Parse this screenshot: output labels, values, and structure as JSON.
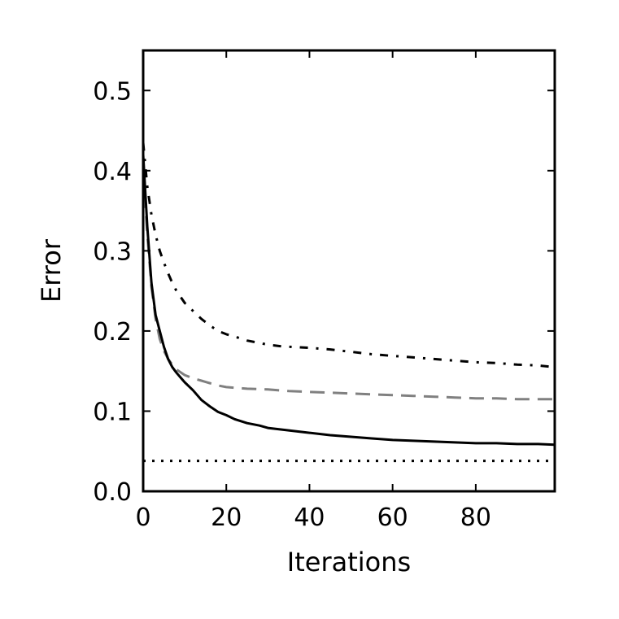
{
  "chart_data": {
    "type": "line",
    "title": "",
    "xlabel": "Iterations",
    "ylabel": "Error",
    "xlim": [
      0,
      99
    ],
    "ylim": [
      0.0,
      0.55
    ],
    "x_ticks": [
      0,
      20,
      40,
      60,
      80
    ],
    "x_tick_labels": [
      "0",
      "20",
      "40",
      "60",
      "80"
    ],
    "y_ticks": [
      0.0,
      0.1,
      0.2,
      0.3,
      0.4,
      0.5
    ],
    "y_tick_labels": [
      "0.0",
      "0.1",
      "0.2",
      "0.3",
      "0.4",
      "0.5"
    ],
    "grid": false,
    "legend": "none",
    "series": [
      {
        "style": "dashdot",
        "color": "#000000",
        "x": [
          0,
          1,
          2,
          3,
          4,
          5,
          6,
          7,
          8,
          10,
          12,
          14,
          16,
          18,
          20,
          22,
          25,
          28,
          30,
          33,
          36,
          40,
          45,
          50,
          55,
          60,
          65,
          70,
          75,
          80,
          85,
          90,
          95,
          99
        ],
        "y": [
          0.435,
          0.38,
          0.345,
          0.32,
          0.3,
          0.285,
          0.272,
          0.26,
          0.25,
          0.235,
          0.225,
          0.215,
          0.207,
          0.2,
          0.196,
          0.193,
          0.188,
          0.185,
          0.183,
          0.181,
          0.18,
          0.179,
          0.177,
          0.174,
          0.171,
          0.169,
          0.167,
          0.165,
          0.163,
          0.161,
          0.16,
          0.158,
          0.157,
          0.155
        ]
      },
      {
        "style": "dashed",
        "color": "#808080",
        "x": [
          0,
          1,
          2,
          3,
          4,
          5,
          6,
          7,
          8,
          10,
          12,
          14,
          16,
          18,
          20,
          25,
          30,
          35,
          40,
          45,
          50,
          55,
          60,
          65,
          70,
          75,
          80,
          85,
          90,
          95,
          99
        ],
        "y": [
          0.4,
          0.32,
          0.255,
          0.215,
          0.19,
          0.175,
          0.165,
          0.158,
          0.152,
          0.145,
          0.141,
          0.138,
          0.135,
          0.132,
          0.13,
          0.128,
          0.127,
          0.125,
          0.124,
          0.123,
          0.122,
          0.121,
          0.12,
          0.119,
          0.118,
          0.117,
          0.116,
          0.116,
          0.115,
          0.115,
          0.115
        ]
      },
      {
        "style": "solid",
        "color": "#000000",
        "x": [
          0,
          1,
          2,
          3,
          4,
          5,
          6,
          7,
          8,
          9,
          10,
          12,
          14,
          16,
          18,
          20,
          22,
          25,
          28,
          30,
          35,
          40,
          45,
          50,
          55,
          60,
          65,
          70,
          75,
          80,
          85,
          90,
          95,
          99
        ],
        "y": [
          0.42,
          0.33,
          0.26,
          0.22,
          0.2,
          0.18,
          0.165,
          0.155,
          0.148,
          0.142,
          0.136,
          0.126,
          0.114,
          0.106,
          0.099,
          0.095,
          0.09,
          0.085,
          0.082,
          0.079,
          0.076,
          0.073,
          0.07,
          0.068,
          0.066,
          0.064,
          0.063,
          0.062,
          0.061,
          0.06,
          0.06,
          0.059,
          0.059,
          0.058
        ]
      },
      {
        "style": "dotted",
        "color": "#000000",
        "x": [
          0,
          99
        ],
        "y": [
          0.038,
          0.038
        ]
      }
    ]
  }
}
